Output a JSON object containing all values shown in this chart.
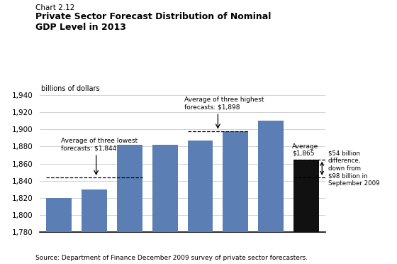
{
  "chart_label": "Chart 2.12",
  "title_line1": "Private Sector Forecast Distribution of Nominal",
  "title_line2": "GDP Level in 2013",
  "ylabel": "billions of dollars",
  "source": "Source: Department of Finance December 2009 survey of private sector forecasters.",
  "bar_values": [
    1820,
    1830,
    1882,
    1882,
    1887,
    1898,
    1910,
    1865
  ],
  "bar_colors": [
    "#5b7fb5",
    "#5b7fb5",
    "#5b7fb5",
    "#5b7fb5",
    "#5b7fb5",
    "#5b7fb5",
    "#5b7fb5",
    "#111111"
  ],
  "ylim": [
    1780,
    1940
  ],
  "yticks": [
    1780,
    1800,
    1820,
    1840,
    1860,
    1880,
    1900,
    1920,
    1940
  ],
  "low_avg": 1844,
  "high_avg": 1898,
  "overall_avg": 1865,
  "low_avg_label": "Average of three lowest\nforecasts: $1,844",
  "high_avg_label": "Average of three highest\nforecasts: $1,898",
  "avg_label": "Average\n$1,865",
  "diff_label": "$54 billion\ndifference,\ndown from\n$98 billion in\nSeptember 2009"
}
